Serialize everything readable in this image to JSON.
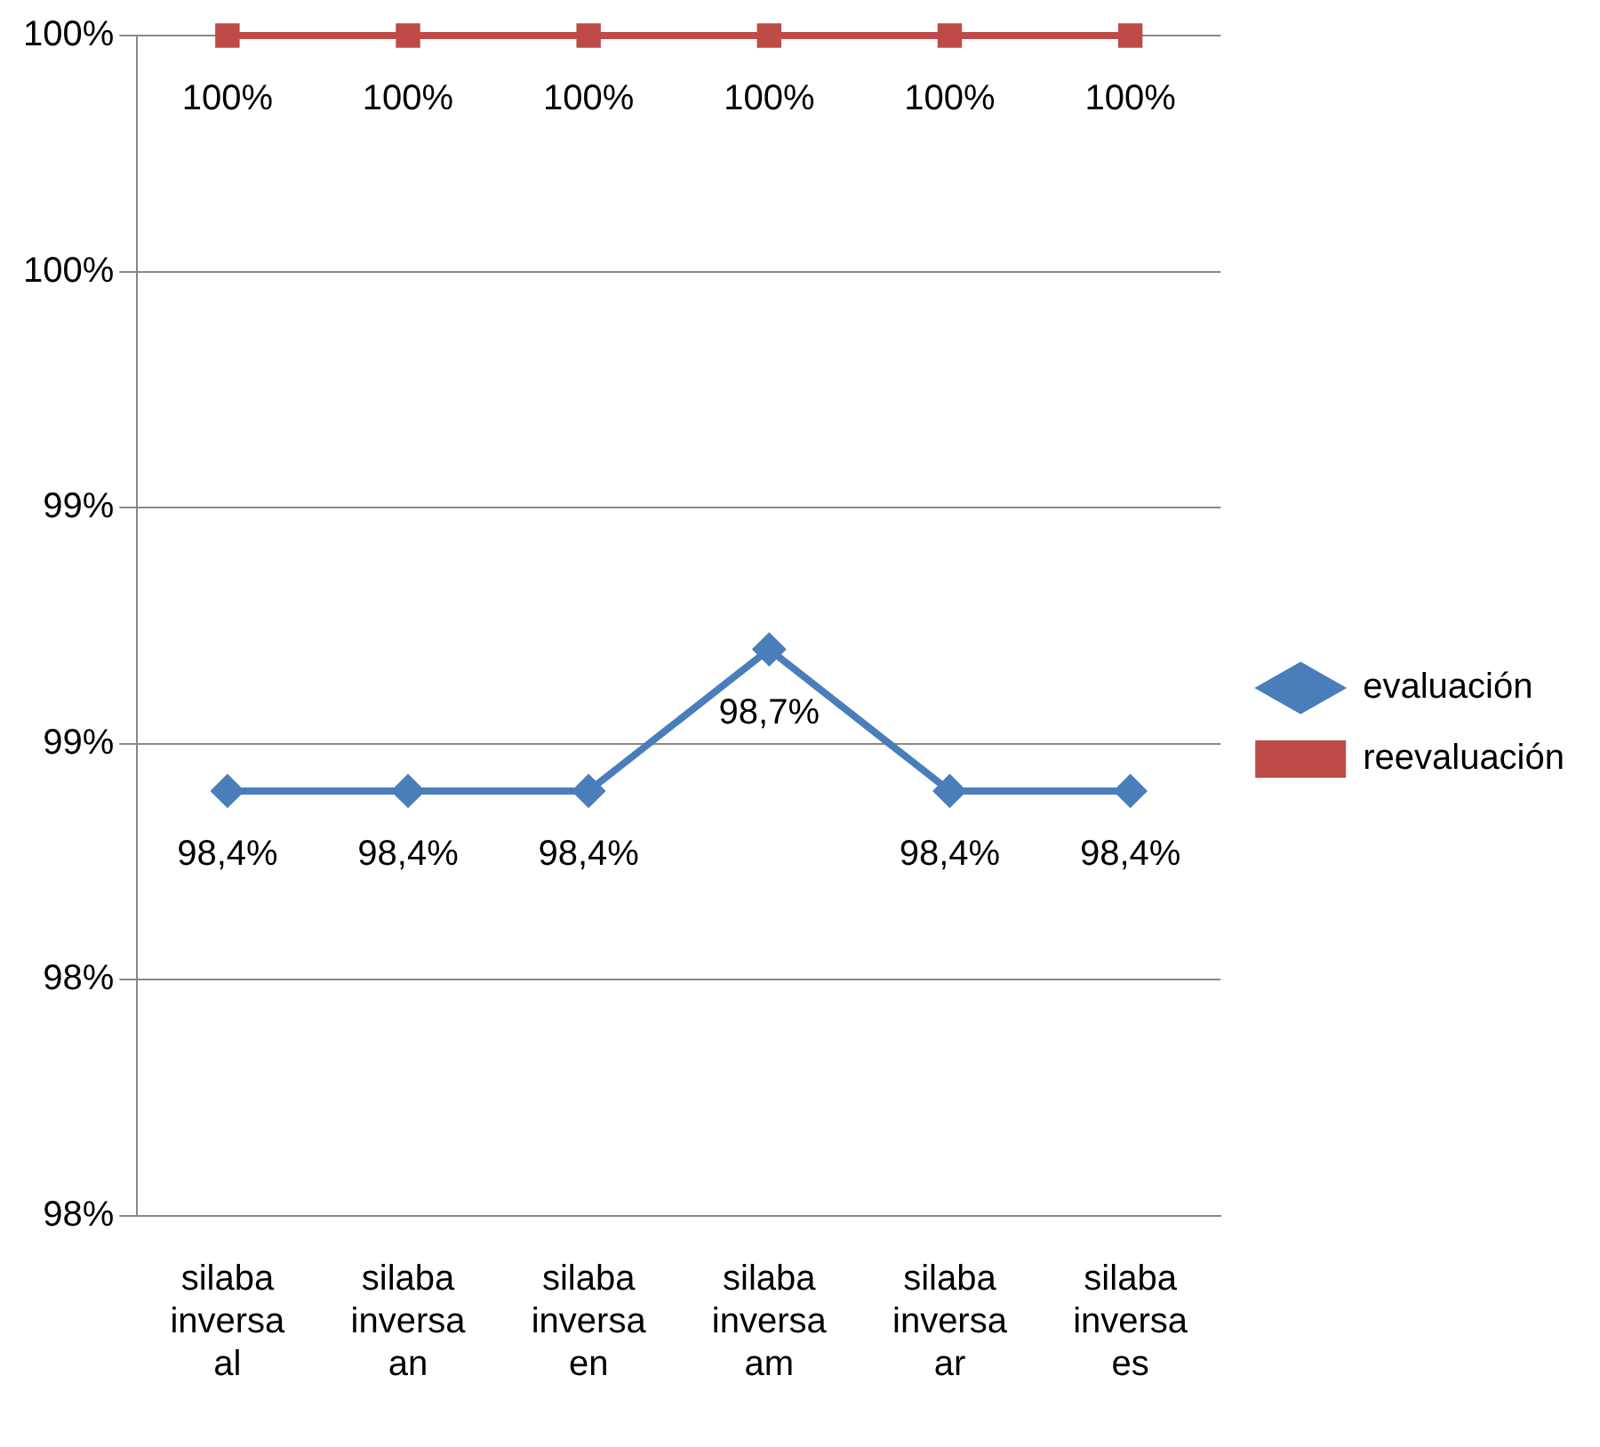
{
  "chart_data": {
    "type": "line",
    "categories": [
      "silaba inversa al",
      "silaba inversa an",
      "silaba inversa en",
      "silaba inversa am",
      "silaba inversa ar",
      "silaba inversa es"
    ],
    "series": [
      {
        "name": "evaluación",
        "color": "#4a7ebb",
        "marker": "diamond",
        "values": [
          98.4,
          98.4,
          98.4,
          98.7,
          98.4,
          98.4
        ],
        "value_labels": [
          "98,4%",
          "98,4%",
          "98,4%",
          "98,7%",
          "98,4%",
          "98,4%"
        ]
      },
      {
        "name": "reevaluación",
        "color": "#be4b48",
        "marker": "square",
        "values": [
          100,
          100,
          100,
          100,
          100,
          100
        ],
        "value_labels": [
          "100%",
          "100%",
          "100%",
          "100%",
          "100%",
          "100%"
        ]
      }
    ],
    "ylim": [
      97.5,
      100
    ],
    "yticks": [
      {
        "value": 97.5,
        "label": "98%"
      },
      {
        "value": 98,
        "label": "98%"
      },
      {
        "value": 98.5,
        "label": "99%"
      },
      {
        "value": 99,
        "label": "99%"
      },
      {
        "value": 99.5,
        "label": "100%"
      },
      {
        "value": 100,
        "label": "100%"
      }
    ],
    "grid": "y",
    "legend": "right",
    "line_style": "solid"
  }
}
